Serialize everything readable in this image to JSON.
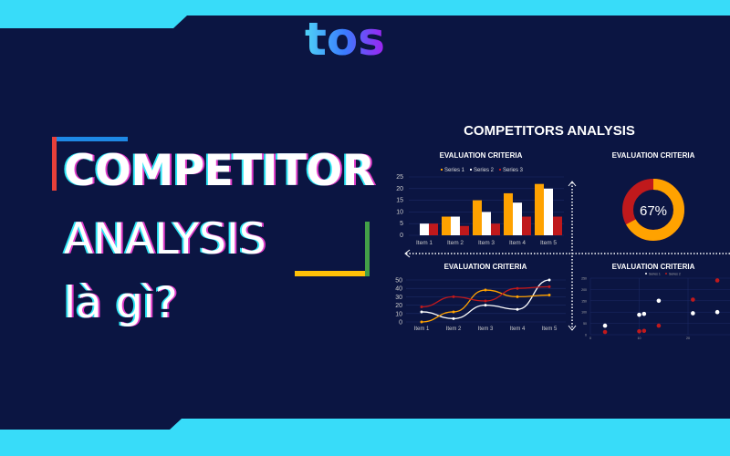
{
  "brand": {
    "logo_text": "tos",
    "colors": {
      "background": "#0b1542",
      "band": "#38dcf9"
    }
  },
  "headline": {
    "line1": "COMPETITOR",
    "line2": "ANALYSIS",
    "line3": "là gì?"
  },
  "accent_colors": {
    "red": "#e8403a",
    "blue": "#1e88e5",
    "green": "#43a047",
    "yellow": "#ffc107"
  },
  "panel": {
    "title": "COMPETITORS ANALYSIS"
  },
  "chart_data": [
    {
      "type": "bar",
      "title": "EVALUATION CRITERIA",
      "categories": [
        "Item 1",
        "Item 2",
        "Item 3",
        "Item 4",
        "Item 5"
      ],
      "ylim": [
        0,
        25
      ],
      "yticks": [
        "0",
        "5",
        "10",
        "15",
        "20",
        "25"
      ],
      "series": [
        {
          "name": "Series 1",
          "color": "#ffa200",
          "values": [
            0,
            8,
            15,
            18,
            22
          ]
        },
        {
          "name": "Series 2",
          "color": "#ffffff",
          "values": [
            5,
            8,
            10,
            14,
            20
          ]
        },
        {
          "name": "Series 3",
          "color": "#c0191c",
          "values": [
            5,
            4,
            5,
            8,
            8
          ]
        }
      ]
    },
    {
      "type": "pie",
      "title": "EVALUATION CRITERIA",
      "label": "67%",
      "value": 67,
      "colors": [
        "#ffa200",
        "#c0191c"
      ]
    },
    {
      "type": "line",
      "title": "EVALUATION CRITERIA",
      "categories": [
        "Item 1",
        "Item 2",
        "Item 3",
        "Item 4",
        "Item 5"
      ],
      "ylim": [
        0,
        50
      ],
      "yticks": [
        "0",
        "10",
        "20",
        "30",
        "40",
        "50"
      ],
      "series": [
        {
          "color": "#ffffff",
          "values": [
            12,
            4,
            20,
            15,
            50
          ]
        },
        {
          "color": "#ffa200",
          "values": [
            0,
            12,
            38,
            30,
            32
          ]
        },
        {
          "color": "#c0191c",
          "values": [
            18,
            30,
            25,
            40,
            42
          ]
        }
      ]
    },
    {
      "type": "scatter",
      "title": "EVALUATION CRITERIA",
      "xlim": [
        0,
        28
      ],
      "ylim": [
        0,
        250
      ],
      "xticks": [
        "0",
        "10",
        "20"
      ],
      "yticks": [
        "0",
        "50",
        "100",
        "150",
        "200",
        "250"
      ],
      "series": [
        {
          "name": "Series 1",
          "color": "#ffffff",
          "points": [
            [
              3,
              40
            ],
            [
              10,
              88
            ],
            [
              11,
              92
            ],
            [
              14,
              150
            ],
            [
              21,
              95
            ],
            [
              26,
              100
            ]
          ]
        },
        {
          "name": "Series 2",
          "color": "#c0191c",
          "points": [
            [
              3,
              12
            ],
            [
              10,
              15
            ],
            [
              11,
              17
            ],
            [
              14,
              40
            ],
            [
              21,
              155
            ],
            [
              26,
              240
            ]
          ]
        }
      ]
    }
  ]
}
